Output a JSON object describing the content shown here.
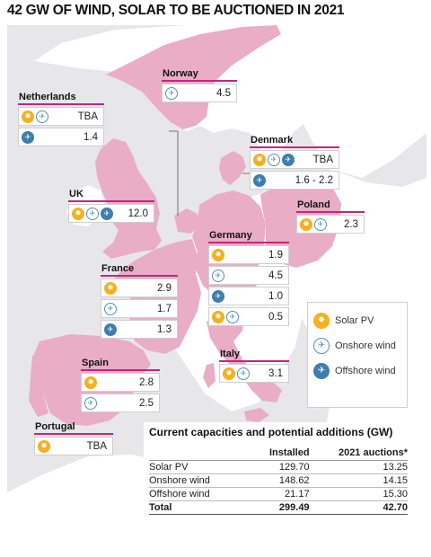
{
  "title": "42 GW OF WIND, SOLAR TO BE AUCTIONED IN 2021",
  "colors": {
    "highlight": "#e9adc5",
    "land": "#ffffff",
    "sea": "#e7e7e9",
    "accent": "#c4267f",
    "solar": "#f5b01c",
    "onshore": "#5292b8",
    "offshore": "#3e7eac"
  },
  "countries": [
    {
      "id": "norway",
      "name": "Norway",
      "rows": [
        {
          "icons": [
            "onshore"
          ],
          "value": "4.5"
        }
      ]
    },
    {
      "id": "netherlands",
      "name": "Netherlands",
      "rows": [
        {
          "icons": [
            "solar",
            "onshore"
          ],
          "value": "TBA"
        },
        {
          "icons": [
            "offshore"
          ],
          "value": "1.4"
        }
      ]
    },
    {
      "id": "denmark",
      "name": "Denmark",
      "rows": [
        {
          "icons": [
            "solar",
            "onshore",
            "offshore"
          ],
          "value": "TBA"
        },
        {
          "icons": [
            "offshore"
          ],
          "value": "1.6 - 2.2"
        }
      ]
    },
    {
      "id": "uk",
      "name": "UK",
      "rows": [
        {
          "icons": [
            "solar",
            "onshore",
            "offshore"
          ],
          "value": "12.0"
        }
      ]
    },
    {
      "id": "poland",
      "name": "Poland",
      "rows": [
        {
          "icons": [
            "solar",
            "onshore"
          ],
          "value": "2.3"
        }
      ]
    },
    {
      "id": "germany",
      "name": "Germany",
      "rows": [
        {
          "icons": [
            "solar"
          ],
          "value": "1.9"
        },
        {
          "icons": [
            "onshore"
          ],
          "value": "4.5"
        },
        {
          "icons": [
            "offshore"
          ],
          "value": "1.0"
        },
        {
          "icons": [
            "solar",
            "onshore"
          ],
          "value": "0.5"
        }
      ]
    },
    {
      "id": "france",
      "name": "France",
      "rows": [
        {
          "icons": [
            "solar"
          ],
          "value": "2.9"
        },
        {
          "icons": [
            "onshore"
          ],
          "value": "1.7"
        },
        {
          "icons": [
            "offshore"
          ],
          "value": "1.3"
        }
      ]
    },
    {
      "id": "italy",
      "name": "Italy",
      "rows": [
        {
          "icons": [
            "solar",
            "onshore"
          ],
          "value": "3.1"
        }
      ]
    },
    {
      "id": "spain",
      "name": "Spain",
      "rows": [
        {
          "icons": [
            "solar"
          ],
          "value": "2.8"
        },
        {
          "icons": [
            "onshore"
          ],
          "value": "2.5"
        }
      ]
    },
    {
      "id": "portugal",
      "name": "Portugal",
      "rows": [
        {
          "icons": [
            "solar"
          ],
          "value": "TBA"
        }
      ]
    }
  ],
  "legend": [
    {
      "icon": "solar",
      "label": "Solar PV"
    },
    {
      "icon": "onshore",
      "label": "Onshore wind"
    },
    {
      "icon": "offshore",
      "label": "Offshore wind"
    }
  ],
  "table": {
    "title": "Current capacities and potential additions (GW)",
    "headers": [
      "",
      "Installed",
      "2021 auctions*"
    ],
    "rows": [
      [
        "Solar PV",
        "129.70",
        "13.25"
      ],
      [
        "Onshore wind",
        "148.62",
        "14.15"
      ],
      [
        "Offshore wind",
        "21.17",
        "15.30"
      ]
    ],
    "total": [
      "Total",
      "299.49",
      "42.70"
    ]
  }
}
